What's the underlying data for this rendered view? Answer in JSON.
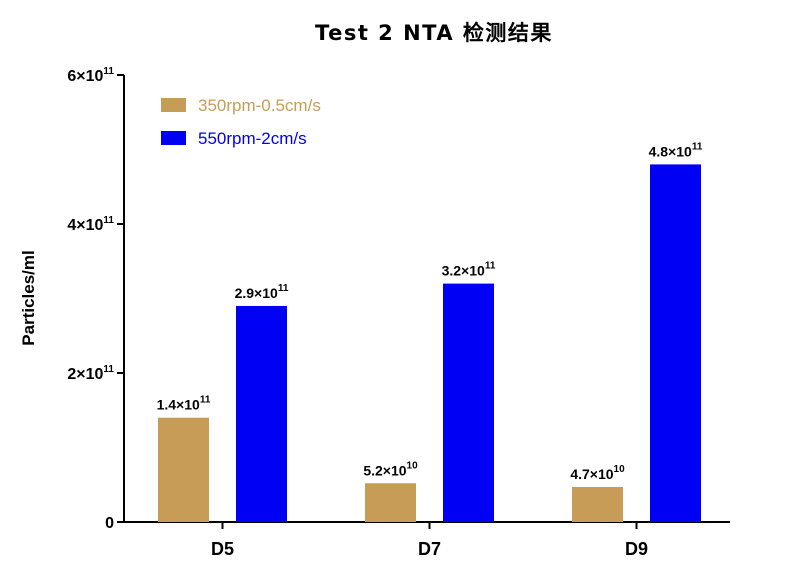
{
  "chart_data": {
    "type": "bar",
    "title": "Test 2 NTA 检测结果",
    "xlabel": "",
    "ylabel": "Particles/ml",
    "categories": [
      "D5",
      "D7",
      "D9"
    ],
    "ylim": [
      0,
      600000000000
    ],
    "yticks": [
      {
        "value": 0,
        "mantissa": "0",
        "exponent": ""
      },
      {
        "value": 200000000000,
        "mantissa": "2×10",
        "exponent": "11"
      },
      {
        "value": 400000000000,
        "mantissa": "4×10",
        "exponent": "11"
      },
      {
        "value": 600000000000,
        "mantissa": "6×10",
        "exponent": "11"
      }
    ],
    "series": [
      {
        "name": "350rpm-0.5cm/s",
        "color": "#C69C57",
        "values": [
          140000000000,
          52000000000,
          47000000000
        ],
        "labels": [
          {
            "mantissa": "1.4×10",
            "exponent": "11"
          },
          {
            "mantissa": "5.2×10",
            "exponent": "10"
          },
          {
            "mantissa": "4.7×10",
            "exponent": "10"
          }
        ]
      },
      {
        "name": "550rpm-2cm/s",
        "color": "#0000F5",
        "values": [
          290000000000,
          320000000000,
          480000000000
        ],
        "labels": [
          {
            "mantissa": "2.9×10",
            "exponent": "11"
          },
          {
            "mantissa": "3.2×10",
            "exponent": "11"
          },
          {
            "mantissa": "4.8×10",
            "exponent": "11"
          }
        ]
      }
    ],
    "legend_position": "top-left",
    "grid": false
  }
}
